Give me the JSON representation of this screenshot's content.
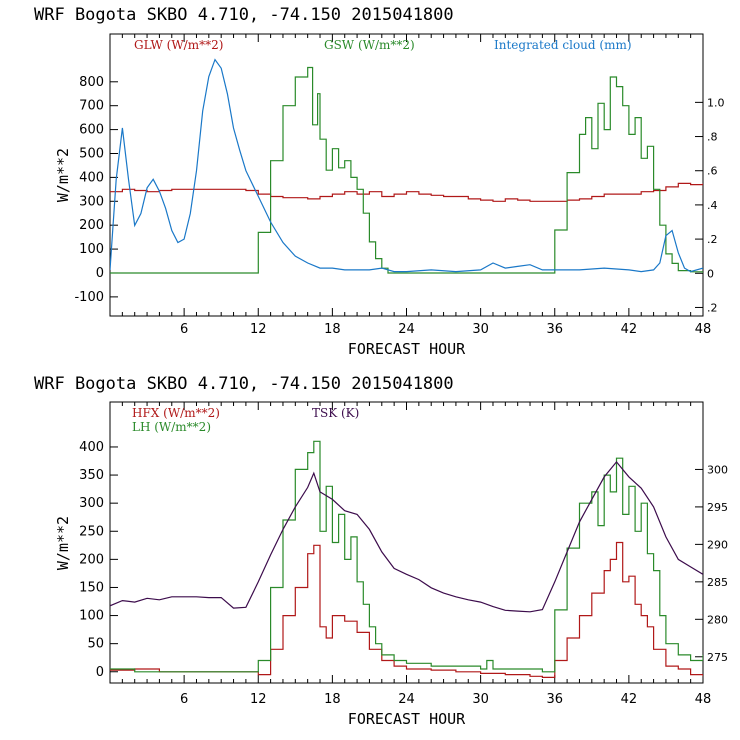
{
  "chart_data": [
    {
      "type": "line",
      "title": "WRF   Bogota SKBO     4.710, -74.150  2015041800",
      "xlabel": "FORECAST HOUR",
      "ylabel": "W/m**2",
      "xlim": [
        0,
        48
      ],
      "xticks": [
        6,
        12,
        18,
        24,
        30,
        36,
        42,
        48
      ],
      "ylim": [
        -180,
        1000
      ],
      "yticks": [
        -100,
        0,
        100,
        200,
        300,
        400,
        500,
        600,
        700,
        800
      ],
      "y2lim": [
        -0.25,
        1.4
      ],
      "y2ticks": [
        -0.2,
        0,
        0.2,
        0.4,
        0.6,
        0.8,
        1.0
      ],
      "y2ticklabels": [
        ".2",
        "0",
        ".2",
        ".4",
        ".6",
        ".8",
        "1.0"
      ],
      "series": [
        {
          "name": "GLW (W/m**2)",
          "color": "#b01818",
          "axis": "left",
          "x": [
            0,
            1,
            2,
            3,
            4,
            5,
            6,
            7,
            8,
            9,
            10,
            11,
            12,
            13,
            14,
            15,
            16,
            17,
            18,
            19,
            20,
            21,
            22,
            23,
            24,
            25,
            26,
            27,
            28,
            29,
            30,
            31,
            32,
            33,
            34,
            35,
            36,
            37,
            38,
            39,
            40,
            41,
            42,
            43,
            44,
            45,
            46,
            47,
            48
          ],
          "y": [
            340,
            350,
            345,
            340,
            345,
            350,
            350,
            350,
            350,
            350,
            350,
            345,
            330,
            320,
            315,
            315,
            310,
            320,
            330,
            340,
            330,
            340,
            320,
            330,
            340,
            330,
            325,
            320,
            320,
            310,
            305,
            300,
            310,
            305,
            300,
            300,
            300,
            305,
            310,
            320,
            330,
            330,
            330,
            340,
            345,
            360,
            375,
            370,
            375
          ]
        },
        {
          "name": "GSW (W/m**2)",
          "color": "#2a8a2a",
          "axis": "left",
          "x": [
            0,
            11,
            12,
            13,
            14,
            15,
            16,
            16.4,
            16.8,
            17,
            17.5,
            18,
            18.5,
            19,
            19.5,
            20,
            20.5,
            21,
            21.5,
            22,
            22.5,
            35,
            36,
            37,
            38,
            38.5,
            39,
            39.5,
            40,
            40.5,
            41,
            41.5,
            42,
            42.5,
            43,
            43.5,
            44,
            44.5,
            45,
            45.5,
            46,
            47,
            48
          ],
          "y": [
            0,
            0,
            170,
            470,
            700,
            820,
            860,
            620,
            750,
            560,
            430,
            520,
            440,
            470,
            400,
            350,
            250,
            130,
            60,
            20,
            0,
            0,
            180,
            420,
            580,
            650,
            520,
            710,
            600,
            820,
            780,
            700,
            580,
            650,
            480,
            530,
            350,
            200,
            80,
            40,
            10,
            5,
            0
          ]
        },
        {
          "name": "Integrated cloud (mm)",
          "color": "#1a78c8",
          "axis": "right",
          "x": [
            0,
            0.5,
            1,
            1.5,
            2,
            2.5,
            3,
            3.5,
            4,
            4.5,
            5,
            5.5,
            6,
            6.5,
            7,
            7.5,
            8,
            8.5,
            9,
            9.5,
            10,
            10.5,
            11,
            12,
            13,
            14,
            15,
            16,
            17,
            18,
            19,
            20,
            21,
            22,
            23,
            24,
            26,
            28,
            30,
            31,
            32,
            33,
            34,
            35,
            36,
            38,
            40,
            42,
            43,
            44,
            44.5,
            45,
            45.5,
            46,
            46.5,
            47,
            48
          ],
          "y": [
            0.02,
            0.55,
            0.85,
            0.55,
            0.28,
            0.35,
            0.5,
            0.55,
            0.48,
            0.38,
            0.25,
            0.18,
            0.2,
            0.35,
            0.6,
            0.95,
            1.15,
            1.25,
            1.2,
            1.05,
            0.85,
            0.72,
            0.6,
            0.45,
            0.3,
            0.18,
            0.1,
            0.06,
            0.03,
            0.03,
            0.02,
            0.02,
            0.02,
            0.03,
            0.01,
            0.01,
            0.02,
            0.01,
            0.02,
            0.06,
            0.03,
            0.04,
            0.05,
            0.02,
            0.02,
            0.02,
            0.03,
            0.02,
            0.01,
            0.02,
            0.06,
            0.22,
            0.25,
            0.12,
            0.03,
            0.01,
            0.03
          ]
        }
      ]
    },
    {
      "type": "line",
      "title": "WRF   Bogota SKBO     4.710, -74.150  2015041800",
      "xlabel": "FORECAST HOUR",
      "ylabel": "W/m**2",
      "xlim": [
        0,
        48
      ],
      "xticks": [
        6,
        12,
        18,
        24,
        30,
        36,
        42,
        48
      ],
      "ylim": [
        -20,
        480
      ],
      "yticks": [
        0,
        50,
        100,
        150,
        200,
        250,
        300,
        350,
        400
      ],
      "y2lim": [
        271.5,
        309
      ],
      "y2ticks": [
        275,
        280,
        285,
        290,
        295,
        300
      ],
      "y2ticklabels": [
        "275",
        "280",
        "285",
        "290",
        "295",
        "300"
      ],
      "series": [
        {
          "name": "HFX (W/m**2)",
          "color": "#b01818",
          "axis": "left",
          "x": [
            0,
            2,
            4,
            6,
            8,
            10,
            11,
            12,
            13,
            14,
            15,
            16,
            16.5,
            17,
            17.5,
            18,
            19,
            20,
            21,
            22,
            23,
            24,
            26,
            28,
            30,
            32,
            34,
            35,
            36,
            37,
            38,
            39,
            40,
            40.5,
            41,
            41.5,
            42,
            42.5,
            43,
            43.5,
            44,
            45,
            46,
            47,
            48
          ],
          "y": [
            3,
            5,
            0,
            0,
            0,
            0,
            0,
            -5,
            40,
            100,
            150,
            210,
            225,
            80,
            60,
            100,
            90,
            70,
            40,
            20,
            10,
            5,
            3,
            0,
            -3,
            -5,
            -8,
            -10,
            20,
            60,
            100,
            140,
            180,
            200,
            230,
            160,
            170,
            120,
            100,
            80,
            40,
            10,
            5,
            -5,
            -8
          ]
        },
        {
          "name": "LH  (W/m**2)",
          "color": "#2a8a2a",
          "axis": "left",
          "x": [
            0,
            2,
            4,
            6,
            8,
            10,
            11,
            12,
            13,
            14,
            15,
            16,
            16.5,
            17,
            17.5,
            18,
            18.5,
            19,
            19.5,
            20,
            20.5,
            21,
            21.5,
            22,
            23,
            24,
            26,
            28,
            30,
            30.5,
            31,
            32,
            34,
            35,
            36,
            37,
            38,
            39,
            39.5,
            40,
            40.5,
            41,
            41.5,
            42,
            42.5,
            43,
            43.5,
            44,
            44.5,
            45,
            46,
            47,
            48
          ],
          "y": [
            5,
            0,
            0,
            0,
            0,
            0,
            0,
            20,
            150,
            270,
            360,
            390,
            410,
            250,
            330,
            230,
            280,
            200,
            240,
            160,
            120,
            80,
            50,
            30,
            20,
            15,
            10,
            10,
            5,
            20,
            5,
            5,
            5,
            0,
            110,
            220,
            300,
            320,
            260,
            350,
            320,
            380,
            280,
            330,
            250,
            300,
            210,
            180,
            100,
            50,
            30,
            20,
            30
          ]
        },
        {
          "name": "TSK (K)",
          "color": "#3c0c4c",
          "axis": "right",
          "x": [
            0,
            1,
            2,
            3,
            4,
            5,
            6,
            7,
            8,
            9,
            10,
            11,
            12,
            13,
            14,
            15,
            16,
            16.5,
            17,
            18,
            19,
            20,
            21,
            22,
            23,
            24,
            25,
            26,
            27,
            28,
            29,
            30,
            31,
            32,
            33,
            34,
            35,
            36,
            37,
            38,
            39,
            40,
            41,
            42,
            43,
            44,
            45,
            46,
            47,
            48
          ],
          "y": [
            281.8,
            282.5,
            282.3,
            282.8,
            282.6,
            283.0,
            283.0,
            283.0,
            282.9,
            282.9,
            281.5,
            281.6,
            285.0,
            288.6,
            292.0,
            295.0,
            297.6,
            299.5,
            297.0,
            296.0,
            294.5,
            294.0,
            292.0,
            289.0,
            286.8,
            286.0,
            285.3,
            284.2,
            283.5,
            283.0,
            282.6,
            282.3,
            281.7,
            281.2,
            281.1,
            281.0,
            281.3,
            285.0,
            289.0,
            293.0,
            296.0,
            299.0,
            301.0,
            299.0,
            297.5,
            295.0,
            291.0,
            288.0,
            287.0,
            286.0
          ]
        }
      ]
    }
  ]
}
